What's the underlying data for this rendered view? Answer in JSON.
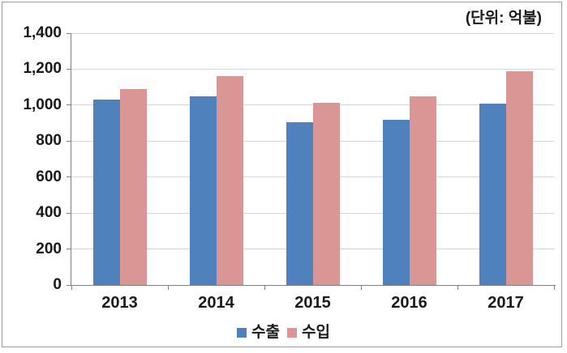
{
  "unit_label": "(단위: 억불)",
  "legend": {
    "items": [
      {
        "label": "수출",
        "color": "#4F81BD"
      },
      {
        "label": "수입",
        "color": "#D99694"
      }
    ]
  },
  "colors": {
    "export_bar": "#4F81BD",
    "import_bar": "#D99694",
    "gridline": "#D6D6D6",
    "axis": "#808080",
    "text": "#1A1A1A",
    "frame_border": "#9E9E9E",
    "background": "#FFFFFF"
  },
  "chart_data": {
    "type": "bar",
    "categories": [
      "2013",
      "2014",
      "2015",
      "2016",
      "2017"
    ],
    "series": [
      {
        "name": "수출",
        "color": "#4F81BD",
        "values": [
          1030,
          1050,
          905,
          920,
          1010
        ]
      },
      {
        "name": "수입",
        "color": "#D99694",
        "values": [
          1090,
          1160,
          1015,
          1050,
          1190
        ]
      }
    ],
    "title": "",
    "xlabel": "",
    "ylabel": "",
    "ylim": [
      0,
      1400
    ],
    "ytick_interval": 200,
    "ytick_labels": [
      "0",
      "200",
      "400",
      "600",
      "800",
      "1,000",
      "1,200",
      "1,400"
    ],
    "grid": true,
    "legend_position": "bottom",
    "unit_annotation": "(단위: 억불)"
  }
}
